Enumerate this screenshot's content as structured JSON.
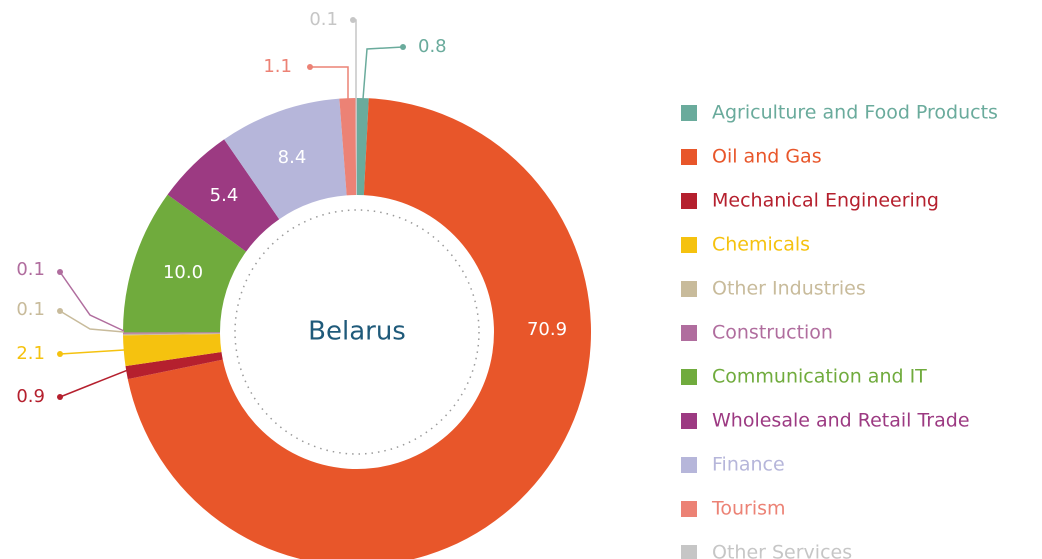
{
  "chart_data": {
    "type": "donut",
    "center_label": "Belarus",
    "categories": [
      "Agriculture and Food Products",
      "Oil and Gas",
      "Mechanical Engineering",
      "Chemicals",
      "Other Industries",
      "Construction",
      "Communication and IT",
      "Wholesale and Retail Trade",
      "Finance",
      "Tourism",
      "Other Services"
    ],
    "values": [
      0.8,
      70.9,
      0.9,
      2.1,
      0.1,
      0.1,
      10.0,
      5.4,
      8.4,
      1.1,
      0.1
    ],
    "value_labels": [
      "0.8",
      "70.9",
      "0.9",
      "2.1",
      "0.1",
      "0.1",
      "10.0",
      "5.4",
      "8.4",
      "1.1",
      "0.1"
    ],
    "colors": [
      "#6aab9c",
      "#e8562a",
      "#b5202e",
      "#f5c20f",
      "#c8bb9b",
      "#b06d9e",
      "#70ab3d",
      "#9c3a82",
      "#b6b6da",
      "#ec8275",
      "#c6c6c6"
    ],
    "legend": "right"
  }
}
